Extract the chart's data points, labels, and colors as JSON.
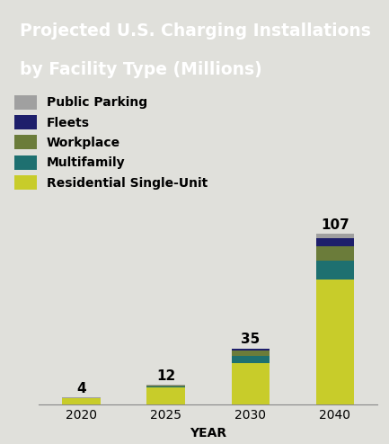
{
  "title_line1": "Projected U.S. Charging Installations",
  "title_line2": "by Facility Type (Millions)",
  "title_bg_color": "#1a5f6a",
  "title_text_color": "#ffffff",
  "background_color": "#e0e0db",
  "categories": [
    "2020",
    "2025",
    "2030",
    "2040"
  ],
  "xlabel": "YEAR",
  "totals": [
    4,
    12,
    35,
    107
  ],
  "segments": {
    "Residential Single-Unit": [
      3.5,
      10.5,
      26.0,
      78.0
    ],
    "Multifamily": [
      0.2,
      0.7,
      4.0,
      12.0
    ],
    "Workplace": [
      0.15,
      0.5,
      3.5,
      9.0
    ],
    "Fleets": [
      0.05,
      0.15,
      1.0,
      5.5
    ],
    "Public Parking": [
      0.1,
      0.15,
      0.5,
      2.5
    ]
  },
  "colors": {
    "Residential Single-Unit": "#c8cc2a",
    "Multifamily": "#1e7070",
    "Workplace": "#6b7c3a",
    "Fleets": "#1e1f6b",
    "Public Parking": "#a0a0a0"
  },
  "legend_order": [
    "Public Parking",
    "Fleets",
    "Workplace",
    "Multifamily",
    "Residential Single-Unit"
  ],
  "bar_width": 0.45,
  "ylim": [
    0,
    120
  ],
  "total_fontsize": 11,
  "xlabel_fontsize": 10,
  "xtick_fontsize": 10,
  "legend_fontsize": 10
}
